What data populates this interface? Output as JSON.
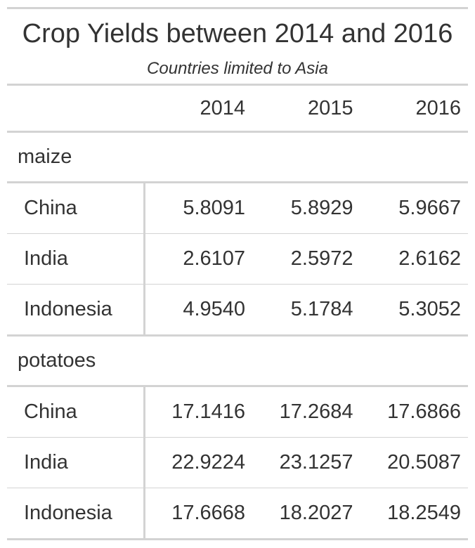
{
  "title": "Crop Yields between 2014 and 2016",
  "subtitle": "Countries limited to Asia",
  "columns": [
    "2014",
    "2015",
    "2016"
  ],
  "groups": [
    {
      "label": "maize",
      "rows": [
        {
          "country": "China",
          "values": [
            "5.8091",
            "5.8929",
            "5.9667"
          ]
        },
        {
          "country": "India",
          "values": [
            "2.6107",
            "2.5972",
            "2.6162"
          ]
        },
        {
          "country": "Indonesia",
          "values": [
            "4.9540",
            "5.1784",
            "5.3052"
          ]
        }
      ]
    },
    {
      "label": "potatoes",
      "rows": [
        {
          "country": "China",
          "values": [
            "17.1416",
            "17.2684",
            "17.6866"
          ]
        },
        {
          "country": "India",
          "values": [
            "22.9224",
            "23.1257",
            "20.5087"
          ]
        },
        {
          "country": "Indonesia",
          "values": [
            "17.6668",
            "18.2027",
            "18.2549"
          ]
        }
      ]
    }
  ]
}
